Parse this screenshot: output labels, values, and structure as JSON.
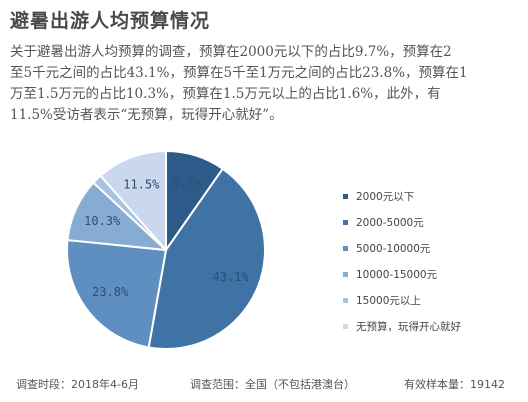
{
  "title": "避暑出游人均预算情况",
  "intro_lines": [
    "关于避暑出游人均预算的调查，预算在2000元以下的占比9.7%，预算在2",
    "至5千元之间的占比43.1%，预算在5千至1万元之间的占比23.8%，预算在1",
    "万至1.5万元的占比10.3%，预算在1.5万元以上的占比1.6%，此外，有",
    "11.5%受访者表示“无预算，玩得开心就好”。"
  ],
  "chart_data": {
    "type": "pie",
    "start_angle_deg": 0,
    "direction": "clockwise",
    "slices": [
      {
        "label": "2000元以下",
        "value": 9.7,
        "value_label": "9.7%",
        "color": "#2c5b89"
      },
      {
        "label": "2000-5000元",
        "value": 43.1,
        "value_label": "43.1%",
        "color": "#3f72a5"
      },
      {
        "label": "5000-10000元",
        "value": 23.8,
        "value_label": "23.8%",
        "color": "#5f8fc0"
      },
      {
        "label": "10000-15000元",
        "value": 10.3,
        "value_label": "10.3%",
        "color": "#87acd3"
      },
      {
        "label": "15000元以上",
        "value": 1.6,
        "value_label": "",
        "color": "#a9c2df"
      },
      {
        "label": "无预算，玩得开心就好",
        "value": 11.5,
        "value_label": "11.5%",
        "color": "#c9d8ec"
      }
    ]
  },
  "footer": {
    "period": "调查时段：2018年4-6月",
    "scope": "调查范围：全国（不包括港澳台）",
    "sample": "有效样本量：19142"
  },
  "colors": {
    "background": "#ffffff",
    "slice_border": "#ffffff",
    "pie_label": "#2b4e75",
    "legend_text": "#444444"
  }
}
